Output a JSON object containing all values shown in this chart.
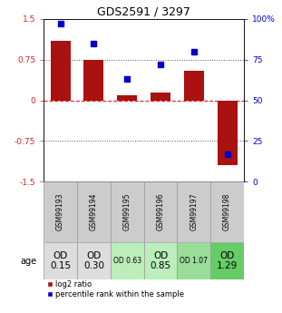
{
  "title": "GDS2591 / 3297",
  "samples": [
    "GSM99193",
    "GSM99194",
    "GSM99195",
    "GSM99196",
    "GSM99197",
    "GSM99198"
  ],
  "log2_ratio": [
    1.1,
    0.75,
    0.1,
    0.15,
    0.55,
    -1.2
  ],
  "percentile_rank": [
    97,
    85,
    63,
    72,
    80,
    17
  ],
  "bar_color": "#aa1111",
  "dot_color": "#0000cc",
  "ylim": [
    -1.5,
    1.5
  ],
  "yticks_left": [
    -1.5,
    -0.75,
    0,
    0.75,
    1.5
  ],
  "yticks_right": [
    0,
    25,
    50,
    75,
    100
  ],
  "hline_zero_color": "#dd2222",
  "hline_dotted_color": "#555555",
  "od_labels": [
    "OD\n0.15",
    "OD\n0.30",
    "OD 0.63",
    "OD\n0.85",
    "OD 1.07",
    "OD\n1.29"
  ],
  "od_fontsize_small": [
    false,
    false,
    true,
    false,
    true,
    false
  ],
  "od_colors": [
    "#dddddd",
    "#dddddd",
    "#bbeebb",
    "#bbeebb",
    "#99dd99",
    "#66cc66"
  ],
  "gsm_color": "#cccccc",
  "age_label": "age",
  "legend_red": "log2 ratio",
  "legend_blue": "percentile rank within the sample",
  "background_color": "#ffffff"
}
